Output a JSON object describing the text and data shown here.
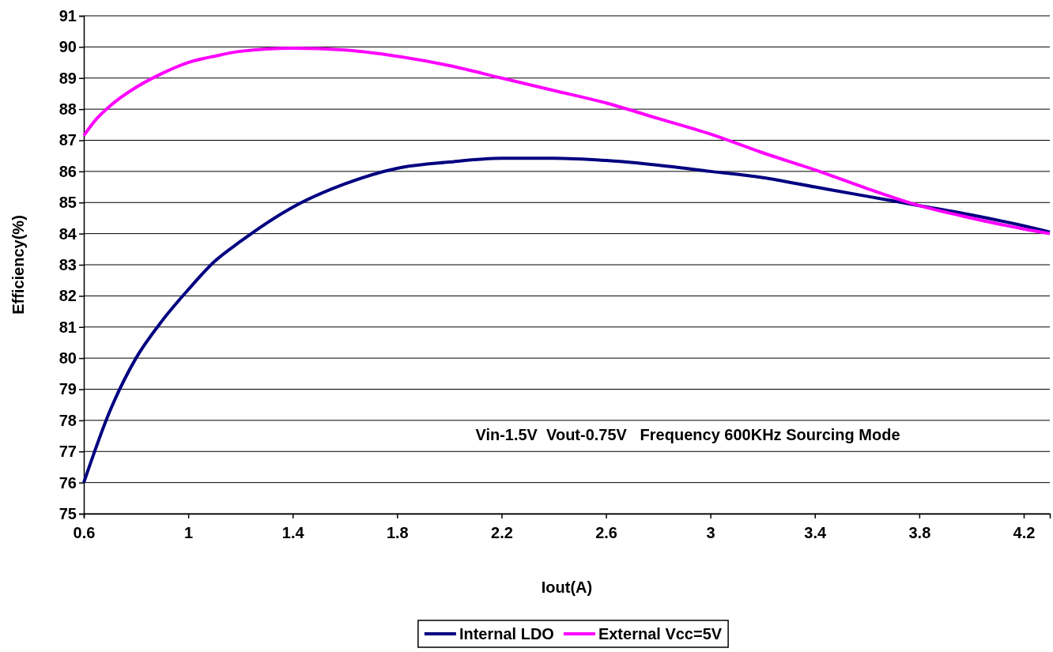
{
  "chart_data": {
    "type": "line",
    "xlabel": "Iout(A)",
    "ylabel": "Efficiency(%)",
    "xlim": [
      0.6,
      4.3
    ],
    "xticks": [
      0.6,
      1,
      1.4,
      1.8,
      2.2,
      2.6,
      3,
      3.4,
      3.8,
      4.2
    ],
    "ylim": [
      75,
      91
    ],
    "yticks": [
      75,
      76,
      77,
      78,
      79,
      80,
      81,
      82,
      83,
      84,
      85,
      86,
      87,
      88,
      89,
      90,
      91
    ],
    "grid": "y",
    "legend": "bottom",
    "line_style": "solid",
    "marker": "none",
    "annotations": [
      "Vin-1.5V  Vout-0.75V   Frequency 600KHz Sourcing Mode"
    ],
    "series": [
      {
        "name": "Internal LDO",
        "color": "#000080",
        "x": [
          0.6,
          0.7,
          0.8,
          0.9,
          1.0,
          1.1,
          1.2,
          1.4,
          1.6,
          1.8,
          2.0,
          2.2,
          2.4,
          2.6,
          2.8,
          3.0,
          3.2,
          3.4,
          3.6,
          3.8,
          4.0,
          4.2,
          4.3
        ],
        "values": [
          76.0,
          78.3,
          80.0,
          81.2,
          82.2,
          83.1,
          83.75,
          84.85,
          85.6,
          86.1,
          86.3,
          86.42,
          86.42,
          86.35,
          86.2,
          86.0,
          85.8,
          85.5,
          85.2,
          84.9,
          84.6,
          84.25,
          84.05
        ]
      },
      {
        "name": "External Vcc=5V",
        "color": "#ff00ff",
        "x": [
          0.6,
          0.65,
          0.7,
          0.8,
          0.9,
          1.0,
          1.1,
          1.2,
          1.4,
          1.6,
          1.8,
          2.0,
          2.2,
          2.4,
          2.6,
          2.8,
          3.0,
          3.2,
          3.4,
          3.6,
          3.8,
          4.0,
          4.2,
          4.3
        ],
        "values": [
          87.15,
          87.7,
          88.1,
          88.7,
          89.15,
          89.5,
          89.7,
          89.86,
          89.96,
          89.9,
          89.7,
          89.4,
          89.0,
          88.6,
          88.2,
          87.7,
          87.2,
          86.6,
          86.05,
          85.45,
          84.9,
          84.5,
          84.15,
          84.0
        ]
      }
    ]
  }
}
